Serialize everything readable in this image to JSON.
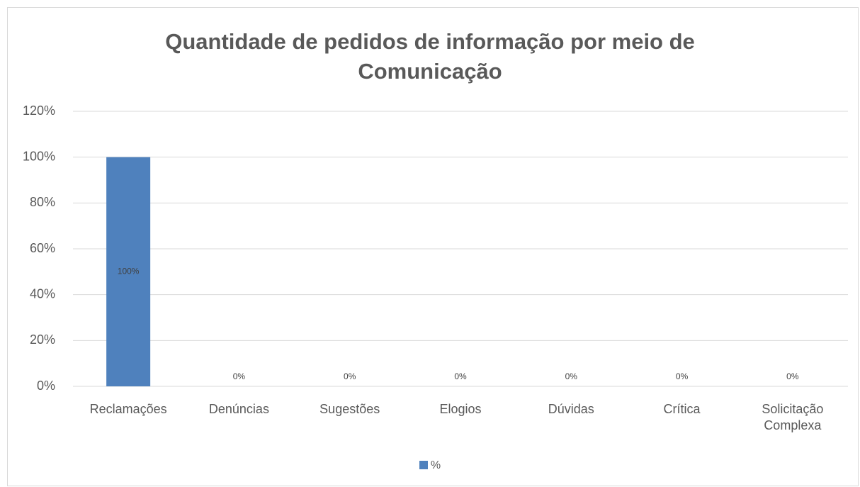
{
  "chart_data": {
    "type": "bar",
    "title": "Quantidade de pedidos de informação por meio de Comunicação",
    "categories": [
      "Reclamações",
      "Denúncias",
      "Sugestões",
      "Elogios",
      "Dúvidas",
      "Crítica",
      "Solicitação Complexa"
    ],
    "series": [
      {
        "name": "%",
        "color": "#4f81bd",
        "values": [
          100,
          0,
          0,
          0,
          0,
          0,
          0
        ],
        "value_labels": [
          "100%",
          "0%",
          "0%",
          "0%",
          "0%",
          "0%",
          "0%"
        ]
      }
    ],
    "ylim": [
      0,
      120
    ],
    "yticks": [
      {
        "value": 0,
        "label": "0%"
      },
      {
        "value": 20,
        "label": "20%"
      },
      {
        "value": 40,
        "label": "40%"
      },
      {
        "value": 60,
        "label": "60%"
      },
      {
        "value": 80,
        "label": "80%"
      },
      {
        "value": 100,
        "label": "100%"
      },
      {
        "value": 120,
        "label": "120%"
      }
    ],
    "grid": true,
    "legend": "bottom"
  }
}
